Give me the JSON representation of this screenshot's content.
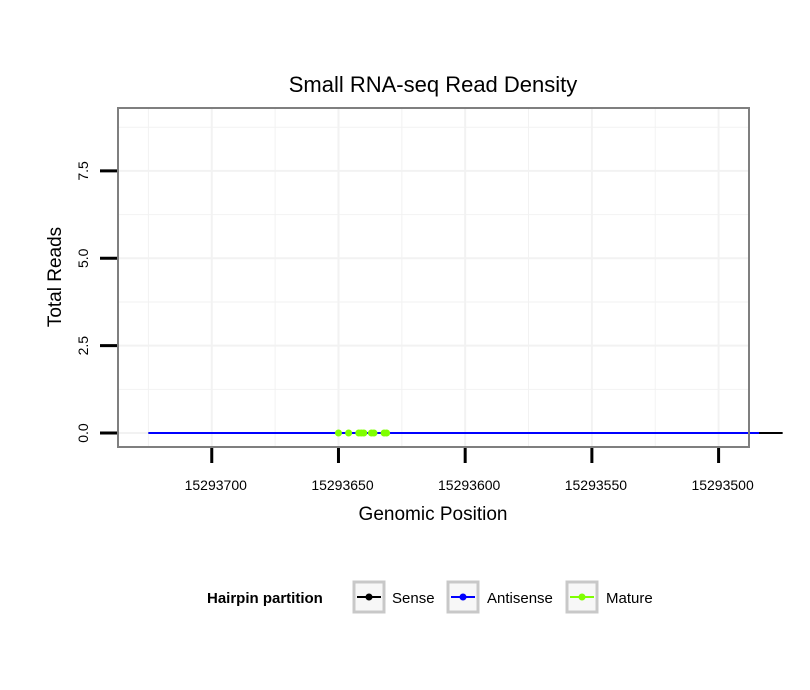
{
  "chart_data": {
    "type": "line",
    "title": "Small RNA-seq Read Density",
    "xlabel": "Genomic Position",
    "ylabel": "Total Reads",
    "xlim": [
      15293737,
      15293488
    ],
    "ylim": [
      -0.4,
      9.3
    ],
    "x_ticks": [
      15293700,
      15293650,
      15293600,
      15293550,
      15293500
    ],
    "x_tick_labels": [
      "15293700",
      "15293650",
      "15293600",
      "15293550",
      "15293500"
    ],
    "y_ticks": [
      0,
      2.5,
      5,
      7.5
    ],
    "y_tick_labels": [
      "0.0",
      "2.5",
      "5.0",
      "7.5"
    ],
    "grid": true,
    "legend": {
      "title": "Hairpin partition",
      "position": "bottom",
      "entries": [
        "Sense",
        "Antisense",
        "Mature"
      ]
    },
    "series": [
      {
        "name": "Sense",
        "color": "#000000",
        "x": [
          15293725,
          15293721,
          15293717,
          15293713,
          15293709,
          15293705,
          15293700,
          15293696,
          15293690,
          15293688,
          15293682,
          15293677,
          15293675,
          15293670,
          15293665,
          15293660,
          15293654,
          15293650,
          15293645,
          15293641,
          15293637,
          15293630,
          15293626,
          15293622,
          15293620,
          15293615,
          15293610,
          15293605,
          15293600,
          15293595,
          15293590,
          15293585,
          15293580,
          15293575,
          15293570,
          15293565,
          15293560,
          15293555,
          15293550,
          15293545,
          15293541,
          15293535,
          15293530,
          15293527,
          15293526,
          15293525,
          15293521,
          15293519,
          15293518,
          15293516,
          15293515,
          15293513,
          15293512,
          15293511,
          15293510,
          15293504,
          15293503,
          15293502,
          15293500,
          15293497,
          15293495,
          15293493,
          15293492,
          15293491,
          15293490,
          15293488,
          15293487,
          15293486,
          15293485,
          15293484,
          15293475,
          15293482
        ],
        "y": [
          0,
          0,
          0,
          0,
          0,
          0,
          0,
          0,
          0,
          0,
          0,
          0,
          0,
          0,
          0,
          0,
          0,
          0,
          0,
          0,
          0,
          0,
          0,
          0,
          0,
          0,
          0,
          0,
          0,
          0,
          0,
          0,
          0,
          0,
          0,
          0,
          0,
          0,
          0,
          0,
          0,
          0,
          0,
          0,
          0,
          0,
          0,
          0,
          0,
          0,
          0,
          0,
          0,
          0,
          0,
          0,
          0,
          0,
          0,
          0,
          0,
          0,
          0,
          0,
          0,
          0,
          0,
          0,
          0,
          0,
          0,
          0
        ]
      },
      {
        "name": "Antisense",
        "color": "#0000ff",
        "x": [
          15293725,
          15293700,
          15293687,
          15293706,
          15293705,
          15293704,
          15293696,
          15293694,
          15293692,
          15293690,
          15293675,
          15293670,
          15293589,
          15293550,
          15293544,
          15293528,
          15293526,
          15293507,
          15293505,
          15293488,
          15293484
        ],
        "y": [
          0,
          0,
          0,
          0,
          0,
          0,
          0,
          0,
          0,
          0,
          0,
          0,
          0,
          0,
          0,
          0,
          0,
          0,
          0,
          0,
          0
        ]
      },
      {
        "name": "Mature",
        "color": "#7fff00",
        "x": [
          15293650,
          15293646,
          15293642,
          15293641,
          15293640,
          15293637,
          15293636,
          15293632,
          15293631
        ],
        "y": [
          0,
          0,
          0,
          0,
          0,
          0,
          0,
          0,
          0
        ]
      }
    ]
  }
}
